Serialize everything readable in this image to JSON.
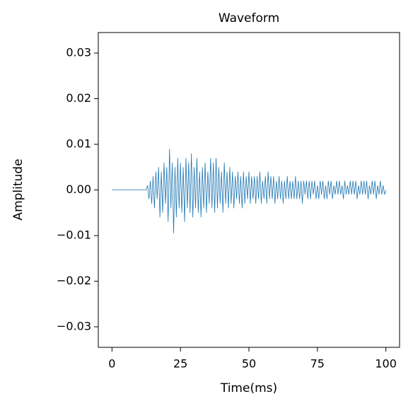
{
  "chart_data": {
    "type": "line",
    "title": "Waveform",
    "x_label": "Time(ms)",
    "y_label": "Amplitude",
    "x": [
      0,
      12.5,
      13,
      13.5,
      14,
      14.5,
      15,
      15.5,
      16,
      16.5,
      17,
      17.5,
      18,
      18.5,
      19,
      19.5,
      20,
      20.5,
      21,
      21.5,
      22,
      22.5,
      23,
      23.5,
      24,
      24.5,
      25,
      25.5,
      26,
      26.5,
      27,
      27.5,
      28,
      28.5,
      29,
      29.5,
      30,
      30.5,
      31,
      31.5,
      32,
      32.5,
      33,
      33.5,
      34,
      34.5,
      35,
      35.5,
      36,
      36.5,
      37,
      37.5,
      38,
      38.5,
      39,
      39.5,
      40,
      40.5,
      41,
      41.5,
      42,
      42.5,
      43,
      43.5,
      44,
      44.5,
      45,
      45.5,
      46,
      46.5,
      47,
      47.5,
      48,
      48.5,
      49,
      49.5,
      50,
      50.5,
      51,
      51.5,
      52,
      52.5,
      53,
      53.5,
      54,
      54.5,
      55,
      55.5,
      56,
      56.5,
      57,
      57.5,
      58,
      58.5,
      59,
      59.5,
      60,
      60.5,
      61,
      61.5,
      62,
      62.5,
      63,
      63.5,
      64,
      64.5,
      65,
      65.5,
      66,
      66.5,
      67,
      67.5,
      68,
      68.5,
      69,
      69.5,
      70,
      70.5,
      71,
      71.5,
      72,
      72.5,
      73,
      73.5,
      74,
      74.5,
      75,
      75.5,
      76,
      76.5,
      77,
      77.5,
      78,
      78.5,
      79,
      79.5,
      80,
      80.5,
      81,
      81.5,
      82,
      82.5,
      83,
      83.5,
      84,
      84.5,
      85,
      85.5,
      86,
      86.5,
      87,
      87.5,
      88,
      88.5,
      89,
      89.5,
      90,
      90.5,
      91,
      91.5,
      92,
      92.5,
      93,
      93.5,
      94,
      94.5,
      95,
      95.5,
      96,
      96.5,
      97,
      97.5,
      98,
      98.5,
      99,
      99.5,
      100
    ],
    "series": [
      {
        "name": "Amplitude",
        "color": "#1f77b4",
        "values": [
          0,
          0,
          0.001,
          -0.002,
          0.002,
          -0.003,
          0.003,
          -0.004,
          0.004,
          -0.002,
          0.005,
          -0.006,
          0.004,
          -0.005,
          0.006,
          -0.003,
          0.005,
          -0.007,
          0.009,
          -0.004,
          0.006,
          -0.0095,
          0.005,
          -0.006,
          0.007,
          -0.004,
          0.006,
          -0.005,
          0.005,
          -0.007,
          0.007,
          -0.004,
          0.006,
          -0.005,
          0.008,
          -0.006,
          0.005,
          -0.004,
          0.007,
          -0.005,
          0.004,
          -0.006,
          0.005,
          -0.004,
          0.006,
          -0.005,
          0.004,
          -0.003,
          0.007,
          -0.004,
          0.006,
          -0.005,
          0.007,
          -0.004,
          0.005,
          -0.003,
          0.004,
          -0.005,
          0.006,
          -0.003,
          0.004,
          -0.004,
          0.005,
          -0.003,
          0.004,
          -0.004,
          0.003,
          -0.002,
          0.004,
          -0.003,
          0.003,
          -0.004,
          0.004,
          -0.003,
          0.003,
          -0.002,
          0.004,
          -0.003,
          0.003,
          -0.002,
          0.003,
          -0.003,
          0.003,
          -0.002,
          0.004,
          -0.003,
          0.002,
          -0.002,
          0.003,
          -0.003,
          0.004,
          -0.002,
          0.003,
          -0.002,
          0.003,
          -0.003,
          0.002,
          -0.002,
          0.003,
          -0.002,
          0.002,
          -0.003,
          0.002,
          -0.002,
          0.003,
          -0.002,
          0.002,
          -0.002,
          0.002,
          -0.002,
          0.003,
          -0.002,
          0.002,
          -0.002,
          0.002,
          -0.003,
          0.002,
          -0.001,
          0.002,
          -0.002,
          0.002,
          -0.002,
          0.002,
          -0.001,
          0.002,
          -0.002,
          0.001,
          -0.002,
          0.002,
          -0.001,
          0.002,
          -0.002,
          0.001,
          -0.002,
          0.002,
          -0.001,
          0.002,
          -0.002,
          0.001,
          -0.001,
          0.002,
          -0.001,
          0.002,
          -0.001,
          0.001,
          -0.002,
          0.002,
          -0.001,
          0.001,
          -0.001,
          0.002,
          -0.001,
          0.002,
          -0.001,
          0.002,
          -0.002,
          0.001,
          -0.001,
          0.002,
          -0.001,
          0.002,
          -0.001,
          0.002,
          -0.002,
          0.001,
          -0.001,
          0.002,
          -0.001,
          0.002,
          -0.002,
          0.001,
          -0.001,
          0.002,
          -0.001,
          0.001,
          -0.001,
          0.0
        ]
      }
    ],
    "xlim": [
      -5,
      105
    ],
    "xticks": [
      0,
      25,
      50,
      75,
      100
    ],
    "ylim": [
      -0.0345,
      0.0345
    ],
    "yticks": [
      {
        "value": -0.03,
        "label": "−0.03"
      },
      {
        "value": -0.02,
        "label": "−0.02"
      },
      {
        "value": -0.01,
        "label": "−0.01"
      },
      {
        "value": 0,
        "label": "0.00"
      },
      0.01,
      0.02,
      0.03
    ]
  }
}
